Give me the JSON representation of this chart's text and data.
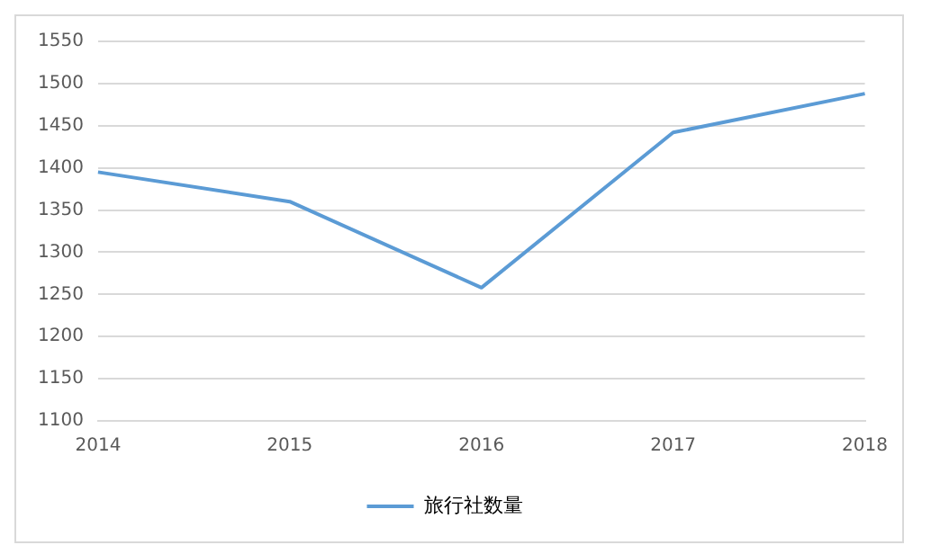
{
  "chart_data": {
    "type": "line",
    "categories": [
      "2014",
      "2015",
      "2016",
      "2017",
      "2018"
    ],
    "series": [
      {
        "name": "旅行社数量",
        "color": "#5b9bd5",
        "values": [
          1395,
          1360,
          1258,
          1442,
          1488
        ]
      }
    ],
    "ylim": [
      1100,
      1550
    ],
    "yticks": [
      1100,
      1150,
      1200,
      1250,
      1300,
      1350,
      1400,
      1450,
      1500,
      1550
    ],
    "grid": "y",
    "legend": "bottom",
    "marker": "none",
    "line_style": "solid"
  }
}
